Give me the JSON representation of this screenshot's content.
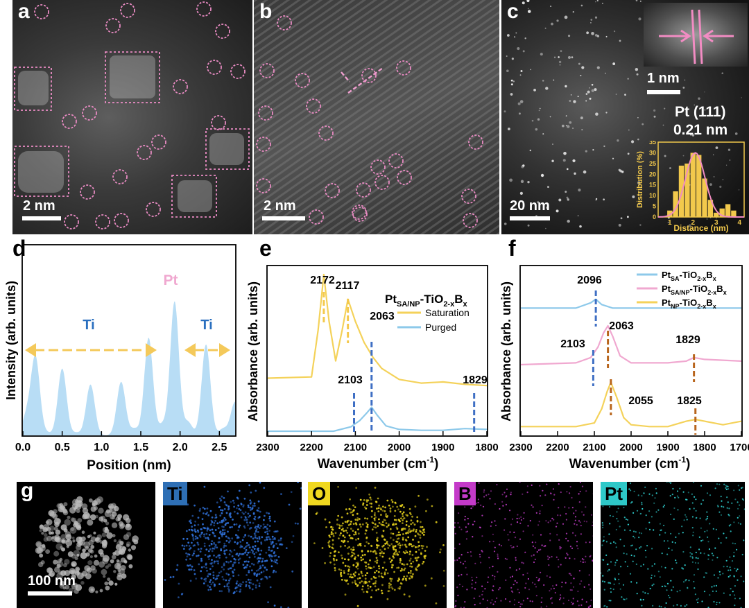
{
  "panels": {
    "a": {
      "label": "a",
      "scale": "2 nm"
    },
    "b": {
      "label": "b",
      "scale": "2 nm"
    },
    "c": {
      "label": "c",
      "scale": "20 nm",
      "inset_scale": "1 nm",
      "lattice_label": "Pt (111)",
      "lattice_value": "0.21 nm"
    },
    "d": {
      "label": "d"
    },
    "e": {
      "label": "e"
    },
    "f": {
      "label": "f"
    },
    "g": {
      "label": "g",
      "scale": "100 nm",
      "maps": [
        "Ti",
        "O",
        "B",
        "Pt"
      ]
    }
  },
  "colors": {
    "yellow": "#f4d25a",
    "blue": "#8dc9ea",
    "pink": "#f0a8d0",
    "dashblue": "#3f6fc4",
    "dashorange": "#b8651c",
    "inset_yellow": "#f2c94c"
  },
  "chart_data": [
    {
      "id": "c-inset",
      "type": "bar",
      "title": "",
      "xlabel": "Distance (nm)",
      "ylabel": "Distribution (%)",
      "xlim": [
        0.5,
        4.2
      ],
      "ylim": [
        0,
        35
      ],
      "xticks": [
        "1",
        "2",
        "3",
        "4"
      ],
      "yticks": [
        "0",
        "5",
        "10",
        "15",
        "20",
        "25",
        "30",
        "35"
      ],
      "x": [
        0.75,
        1.0,
        1.25,
        1.5,
        1.75,
        2.0,
        2.25,
        2.5,
        2.75,
        3.0,
        3.25,
        3.5,
        3.75,
        4.0
      ],
      "values": [
        0,
        3,
        12,
        24,
        25,
        30,
        29,
        18,
        8,
        2,
        4,
        6,
        3,
        0
      ],
      "fit": "gaussian"
    },
    {
      "id": "d",
      "type": "area",
      "xlabel": "Position (nm)",
      "ylabel": "Intensity (arb. units)",
      "xlim": [
        0.0,
        2.7
      ],
      "xticks": [
        "0.0",
        "0.5",
        "1.0",
        "1.5",
        "2.0",
        "2.5"
      ],
      "x": [
        0.05,
        0.16,
        0.3,
        0.5,
        0.68,
        0.86,
        1.05,
        1.25,
        1.42,
        1.6,
        1.78,
        1.93,
        2.1,
        2.33,
        2.55,
        2.7
      ],
      "values": [
        0.15,
        0.58,
        0.02,
        0.5,
        0.02,
        0.38,
        0.0,
        0.4,
        0.05,
        0.73,
        0.08,
        1.0,
        0.1,
        0.68,
        0.05,
        0.25
      ],
      "annotations": [
        "Ti",
        "Pt",
        "Ti"
      ]
    },
    {
      "id": "e",
      "type": "line",
      "title": "Pt_SA/NP-TiO_2-xB_x",
      "xlabel": "Wavenumber (cm-1)",
      "ylabel": "Absorbance (arb. units)",
      "xlim": [
        2300,
        1800
      ],
      "xticks": [
        "2300",
        "2200",
        "2100",
        "2000",
        "1900",
        "1800"
      ],
      "series": [
        {
          "name": "Saturation",
          "x": [
            2300,
            2200,
            2185,
            2172,
            2160,
            2145,
            2130,
            2117,
            2100,
            2080,
            2060,
            2040,
            2000,
            1950,
            1900,
            1850,
            1800
          ],
          "values": [
            0.16,
            0.17,
            0.55,
            1.0,
            0.62,
            0.3,
            0.55,
            0.8,
            0.62,
            0.45,
            0.33,
            0.24,
            0.15,
            0.12,
            0.13,
            0.11,
            0.1
          ]
        },
        {
          "name": "Purged",
          "x": [
            2300,
            2150,
            2110,
            2090,
            2075,
            2063,
            2050,
            2030,
            2000,
            1950,
            1900,
            1850,
            1800
          ],
          "values": [
            0.0,
            0.0,
            0.05,
            0.12,
            0.2,
            0.27,
            0.18,
            0.06,
            0.02,
            0.01,
            0.01,
            0.03,
            0.02
          ]
        }
      ],
      "peak_labels": [
        "2172",
        "2117",
        "2063",
        "2103",
        "1829"
      ]
    },
    {
      "id": "f",
      "type": "line",
      "xlabel": "Wavenumber (cm-1)",
      "ylabel": "Absorbance (arb. units)",
      "xlim": [
        2300,
        1700
      ],
      "xticks": [
        "2300",
        "2200",
        "2100",
        "2000",
        "1900",
        "1800",
        "1700"
      ],
      "series": [
        {
          "name": "Pt_SA-TiO_2-xB_x",
          "x": [
            2300,
            2150,
            2110,
            2096,
            2080,
            2050,
            2000,
            1900,
            1800,
            1700
          ],
          "values": [
            0.72,
            0.72,
            0.75,
            0.77,
            0.74,
            0.72,
            0.72,
            0.72,
            0.72,
            0.72
          ]
        },
        {
          "name": "Pt_SA/NP-TiO_2-xB_x",
          "x": [
            2300,
            2150,
            2110,
            2090,
            2075,
            2063,
            2050,
            2030,
            2000,
            1900,
            1850,
            1829,
            1800,
            1700
          ],
          "values": [
            0.4,
            0.41,
            0.44,
            0.5,
            0.58,
            0.62,
            0.56,
            0.45,
            0.41,
            0.41,
            0.42,
            0.44,
            0.43,
            0.42
          ]
        },
        {
          "name": "Pt_NP-TiO_2-xB_x",
          "x": [
            2300,
            2150,
            2100,
            2080,
            2065,
            2055,
            2040,
            2020,
            2000,
            1950,
            1900,
            1850,
            1825,
            1800,
            1750,
            1700
          ],
          "values": [
            0.05,
            0.05,
            0.07,
            0.15,
            0.25,
            0.3,
            0.22,
            0.1,
            0.06,
            0.05,
            0.05,
            0.08,
            0.09,
            0.08,
            0.06,
            0.08
          ]
        }
      ],
      "peak_labels": [
        "2096",
        "2103",
        "2063",
        "1829",
        "2055",
        "1825"
      ]
    }
  ]
}
